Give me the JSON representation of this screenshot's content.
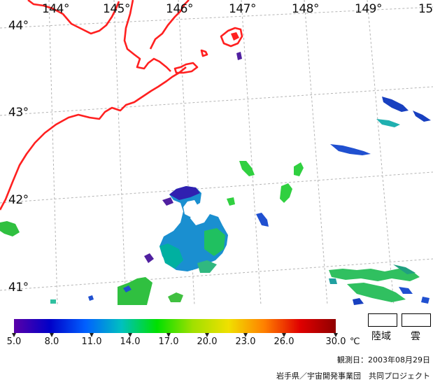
{
  "map": {
    "longitude_labels": [
      "144°",
      "145°",
      "146°",
      "147°",
      "148°",
      "149°",
      "15"
    ],
    "latitude_labels": [
      "44°",
      "43°",
      "42°",
      "41°"
    ],
    "colors": {
      "coastline": "#ff2020",
      "graticule": "#b0b0b0",
      "sea_background": "#ffffff"
    }
  },
  "colorbar": {
    "tick_labels": [
      "5.0",
      "8.0",
      "11.0",
      "14.0",
      "17.0",
      "20.0",
      "23.0",
      "26.0",
      "30.0"
    ],
    "unit": "℃",
    "colors": [
      "#5a00a8",
      "#0000c8",
      "#0060ff",
      "#00c0c0",
      "#00e000",
      "#a0e000",
      "#f0e000",
      "#ff8000",
      "#e00000",
      "#900000"
    ]
  },
  "legend": {
    "land_label": "陸域",
    "cloud_label": "雲"
  },
  "observation_date": "観測日：2003年08月29日",
  "credit": "岩手県／宇宙開発事業団　共同プロジェクト"
}
